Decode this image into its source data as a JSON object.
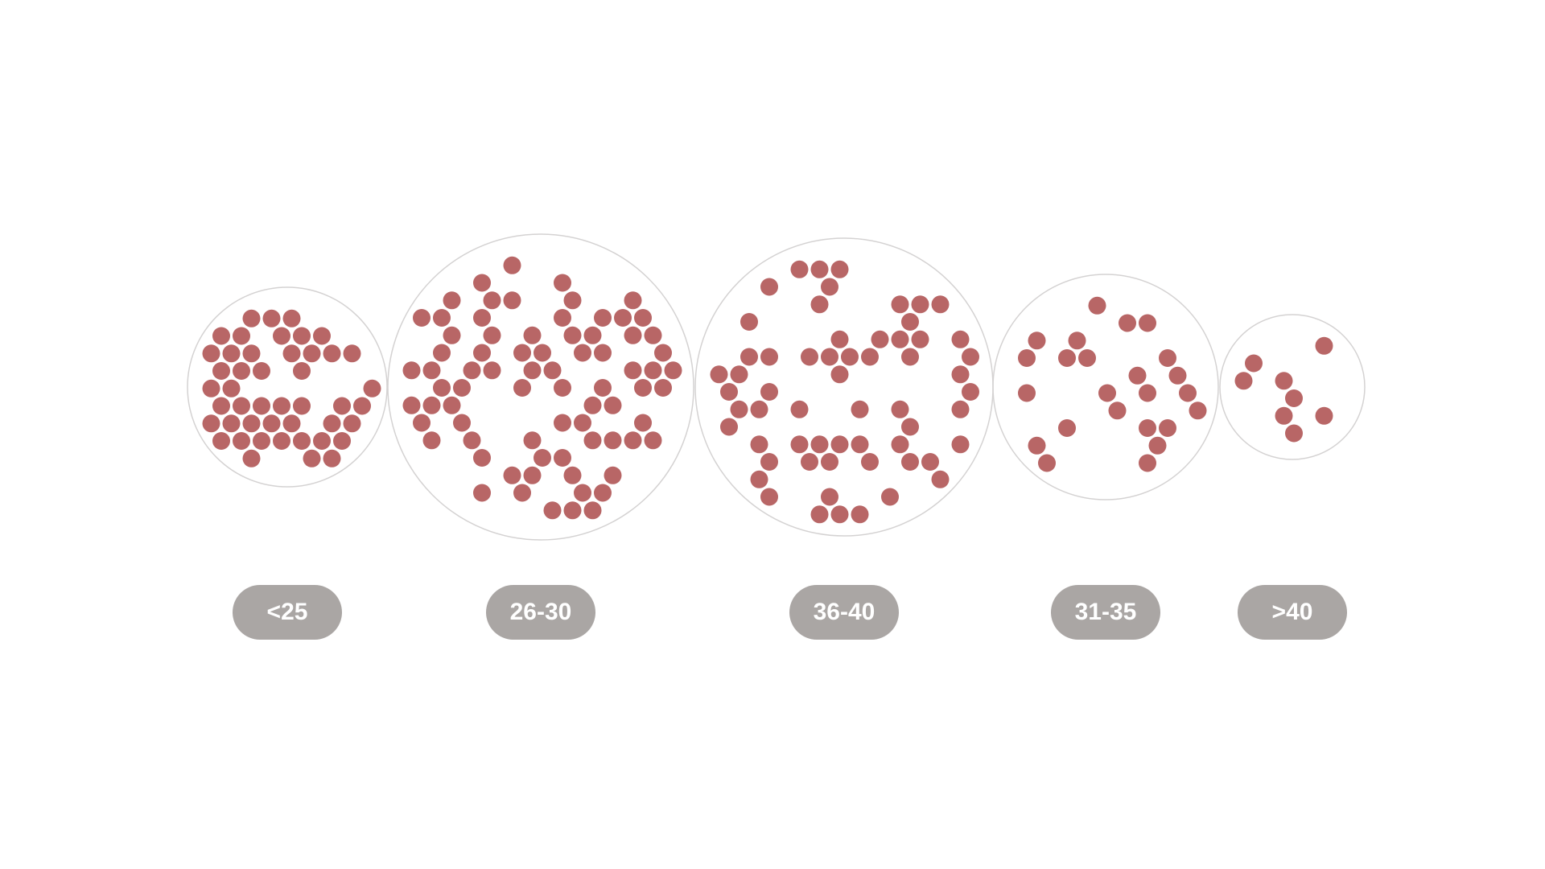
{
  "chart_data": {
    "type": "packed-bubble",
    "title": "",
    "dot_color": "#b86666",
    "circle_stroke": "#d4d2d2",
    "label_bg": "#aaa6a4",
    "label_text_color": "#ffffff",
    "groups": [
      {
        "label": "<25",
        "count": 46
      },
      {
        "label": "26-30",
        "count": 76
      },
      {
        "label": "36-40",
        "count": 60
      },
      {
        "label": "31-35",
        "count": 24
      },
      {
        "label": ">40",
        "count": 8
      }
    ]
  }
}
